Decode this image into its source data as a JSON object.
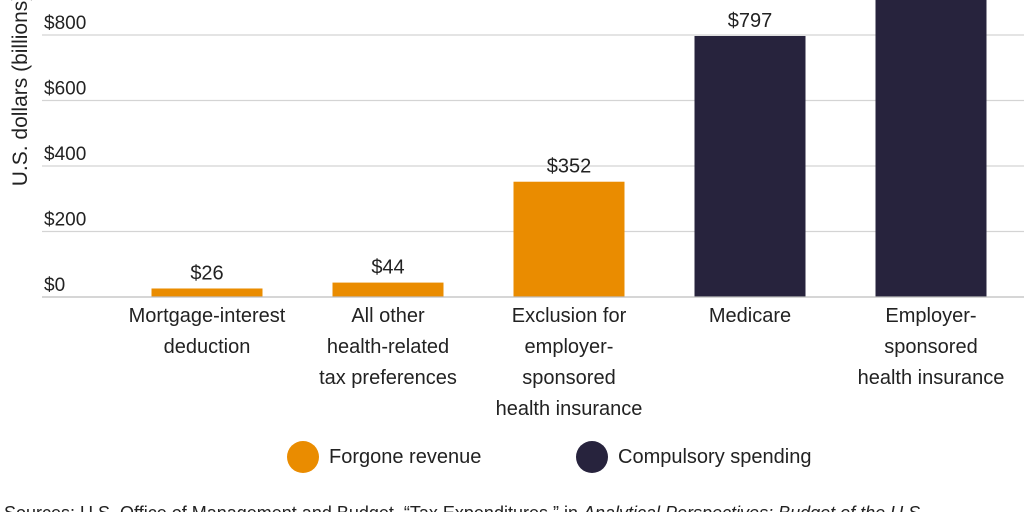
{
  "chart_data": {
    "type": "bar",
    "ylabel": "U.S. dollars (billions)",
    "ylim": [
      0,
      960
    ],
    "yticks": [
      0,
      200,
      400,
      600,
      800
    ],
    "ytick_labels": [
      "$0",
      "$200",
      "$400",
      "$600",
      "$800"
    ],
    "grid": true,
    "categories": [
      [
        "Mortgage-interest",
        "deduction"
      ],
      [
        "All other",
        "health-related",
        "tax preferences"
      ],
      [
        "Exclusion for",
        "employer-",
        "sponsored",
        "health insurance"
      ],
      [
        "Medicare"
      ],
      [
        "Employer-",
        "sponsored",
        "health insurance"
      ]
    ],
    "values": [
      26,
      44,
      352,
      797,
      960
    ],
    "value_labels": [
      "$26",
      "$44",
      "$352",
      "$797",
      ""
    ],
    "groups": [
      "forgone",
      "forgone",
      "forgone",
      "compulsory",
      "compulsory"
    ],
    "legend": [
      {
        "key": "forgone",
        "label": "Forgone revenue",
        "color": "#EA8C00"
      },
      {
        "key": "compulsory",
        "label": "Compulsory spending",
        "color": "#27233D"
      }
    ],
    "legend_placement": "bottom"
  },
  "source": {
    "prefix": "Sources: U.S. Office of Management and Budget, “Tax Expenditures,” in ",
    "italic": "Analytical Perspectives: Budget of the U.S."
  }
}
